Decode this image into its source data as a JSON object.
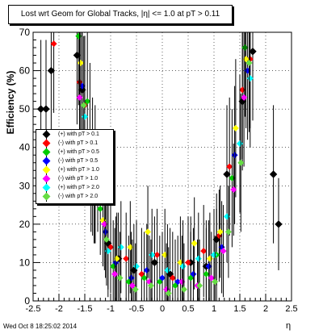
{
  "chart_data": {
    "type": "scatter",
    "title": "Lost wrt Geom for Global Tracks, |η| <= 1.0 at pT > 0.11",
    "xlabel": "η",
    "ylabel": "Efficiency (%)",
    "xlim": [
      -2.5,
      2.5
    ],
    "ylim": [
      0,
      70
    ],
    "xticks": [
      "-2.5",
      "-2",
      "-1.5",
      "-1",
      "-0.5",
      "0",
      "0.5",
      "1",
      "1.5",
      "2",
      "2.5"
    ],
    "yticks": [
      "0",
      "10",
      "20",
      "30",
      "40",
      "50",
      "60",
      "70"
    ],
    "grid": true,
    "legend_position": "left-middle",
    "series": [
      {
        "name": "(+) with pT > 0.1",
        "color": "#000000",
        "x": [
          -2.35,
          -2.25,
          -2.15,
          -1.65,
          -1.55,
          -1.25,
          -1.05,
          -0.85,
          -0.55,
          -0.15,
          0.15,
          0.55,
          0.85,
          1.05,
          1.25,
          1.55,
          1.75,
          2.15,
          2.25
        ],
        "y": [
          50,
          50,
          60,
          64,
          55,
          30,
          15,
          11,
          8,
          10,
          7,
          10,
          9,
          16,
          33,
          52,
          65,
          33,
          20
        ]
      },
      {
        "name": "(-) with pT > 0.1",
        "color": "#ff0000",
        "x": [
          -2.1,
          -1.6,
          -1.5,
          -1.3,
          -1.0,
          -0.7,
          -0.4,
          -0.1,
          0.2,
          0.5,
          0.8,
          1.1,
          1.3,
          1.55,
          1.7
        ],
        "y": [
          67,
          57,
          51,
          27,
          14,
          11,
          7,
          12,
          6,
          10,
          13,
          17,
          35,
          55,
          63
        ]
      },
      {
        "name": "(+) with pT > 0.5",
        "color": "#00cc00",
        "x": [
          -1.62,
          -1.45,
          -1.2,
          -0.95,
          -0.65,
          -0.35,
          -0.05,
          0.25,
          0.55,
          0.85,
          1.05,
          1.35,
          1.6
        ],
        "y": [
          69,
          52,
          24,
          9,
          5,
          6,
          5,
          4,
          6,
          7,
          12,
          32,
          66
        ]
      },
      {
        "name": "(-) with pT > 0.5",
        "color": "#0000ff",
        "x": [
          -1.55,
          -1.35,
          -1.1,
          -0.9,
          -0.6,
          -0.3,
          0.0,
          0.3,
          0.6,
          0.9,
          1.15,
          1.4,
          1.65
        ],
        "y": [
          56,
          35,
          18,
          10,
          6,
          8,
          6,
          5,
          7,
          9,
          14,
          38,
          60
        ]
      },
      {
        "name": "(+) with pT > 1.0",
        "color": "#ffff00",
        "x": [
          -1.58,
          -1.4,
          -1.15,
          -0.88,
          -0.62,
          -0.28,
          0.05,
          0.35,
          0.62,
          0.92,
          1.12,
          1.42,
          1.62
        ],
        "y": [
          62,
          44,
          21,
          11,
          14,
          18,
          12,
          10,
          15,
          11,
          18,
          45,
          63
        ]
      },
      {
        "name": "(-) with pT > 1.0",
        "color": "#ff00ff",
        "x": [
          -1.6,
          -1.38,
          -1.12,
          -0.92,
          -0.58,
          -0.25,
          0.08,
          0.38,
          0.68,
          0.95,
          1.18,
          1.38,
          1.58
        ],
        "y": [
          53,
          30,
          20,
          7,
          4,
          5,
          3,
          5,
          4,
          6,
          13,
          29,
          53
        ]
      },
      {
        "name": "(+) with pT > 2.0",
        "color": "#00ffff",
        "x": [
          -1.5,
          -1.3,
          -1.05,
          -0.8,
          -0.5,
          -0.2,
          0.1,
          0.4,
          0.7,
          1.0,
          1.25,
          1.5,
          1.7
        ],
        "y": [
          48,
          33,
          13,
          14,
          9,
          12,
          8,
          9,
          11,
          12,
          22,
          41,
          58
        ]
      },
      {
        "name": "(-) with pT > 2.0",
        "color": "#66dd44",
        "x": [
          -1.52,
          -1.32,
          -1.08,
          -0.82,
          -0.52,
          -0.22,
          0.12,
          0.42,
          0.72,
          1.02,
          1.28,
          1.52,
          1.68
        ],
        "y": [
          51,
          27,
          16,
          6,
          3,
          4,
          2,
          3,
          4,
          5,
          18,
          36,
          62
        ]
      }
    ]
  },
  "footer": {
    "timestamp": "Wed Oct  8 18:25:02 2014"
  }
}
